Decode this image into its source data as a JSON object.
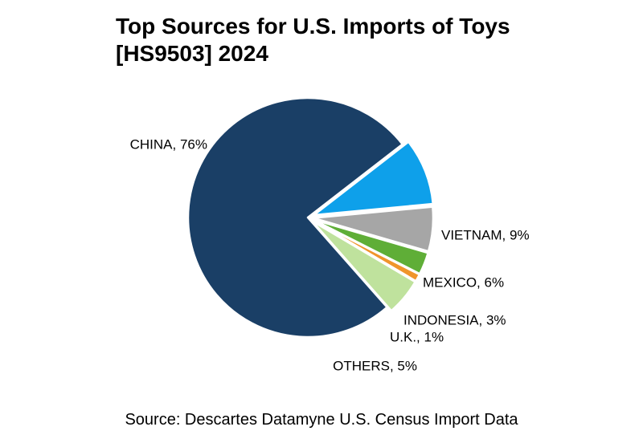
{
  "title_lines": [
    "Top Sources for U.S. Imports of Toys",
    "[HS9503] 2024"
  ],
  "source": "Source: Descartes Datamyne U.S. Census Import Data",
  "chart_data": {
    "type": "pie",
    "title": "Top Sources for U.S. Imports of Toys [HS9503] 2024",
    "slices": [
      {
        "name": "CHINA",
        "value": 76,
        "label": "CHINA, 76%",
        "color": "#1a3f66"
      },
      {
        "name": "VIETNAM",
        "value": 9,
        "label": "VIETNAM, 9%",
        "color": "#0ea0ea"
      },
      {
        "name": "MEXICO",
        "value": 6,
        "label": "MEXICO, 6%",
        "color": "#a6a6a6"
      },
      {
        "name": "INDONESIA",
        "value": 3,
        "label": "INDONESIA, 3%",
        "color": "#5fae37"
      },
      {
        "name": "U.K.",
        "value": 1,
        "label": "U.K., 1%",
        "color": "#f0952b"
      },
      {
        "name": "OTHERS",
        "value": 5,
        "label": "OTHERS, 5%",
        "color": "#bfe29d"
      }
    ]
  }
}
